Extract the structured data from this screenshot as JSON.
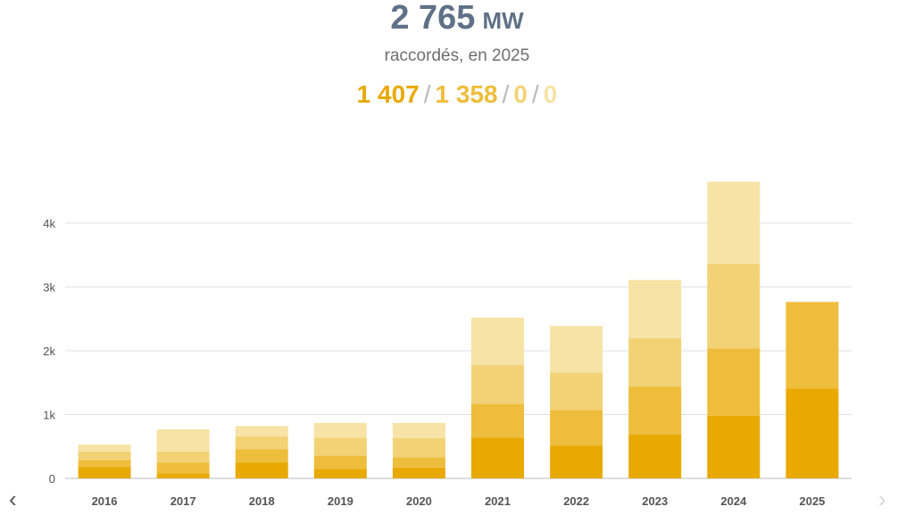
{
  "header": {
    "total_value": "2 765",
    "total_unit": "MW",
    "subtitle": "raccordés, en 2025",
    "breakdown": [
      "1 407",
      "1 358",
      "0",
      "0"
    ],
    "separator": "/"
  },
  "navigation": {
    "prev_icon": "chevron-left-icon",
    "next_icon": "chevron-right-icon",
    "prev_glyph": "‹",
    "next_glyph": "›"
  },
  "colors": {
    "total_text": "#5f7187",
    "series": [
      "#e8a900",
      "#eebd3b",
      "#f3d276",
      "#f7e3a6"
    ],
    "grid": "#dde1e5",
    "axis_text": "#555555"
  },
  "chart_data": {
    "type": "bar",
    "stacked": true,
    "categories": [
      "2016",
      "2017",
      "2018",
      "2019",
      "2020",
      "2021",
      "2022",
      "2023",
      "2024",
      "2025"
    ],
    "series": [
      {
        "values": [
          180,
          80,
          250,
          150,
          170,
          640,
          510,
          690,
          980,
          1407
        ]
      },
      {
        "values": [
          110,
          170,
          210,
          210,
          160,
          530,
          560,
          750,
          1060,
          1358
        ]
      },
      {
        "values": [
          130,
          170,
          200,
          280,
          300,
          610,
          590,
          760,
          1320,
          0
        ]
      },
      {
        "values": [
          110,
          350,
          160,
          230,
          240,
          740,
          730,
          910,
          1290,
          0
        ]
      }
    ],
    "yticks": [
      0,
      1000,
      2000,
      3000,
      4000
    ],
    "ytick_labels": [
      "0",
      "1k",
      "2k",
      "3k",
      "4k"
    ],
    "ylim": [
      0,
      4700
    ],
    "grid": true,
    "legend": "none"
  }
}
